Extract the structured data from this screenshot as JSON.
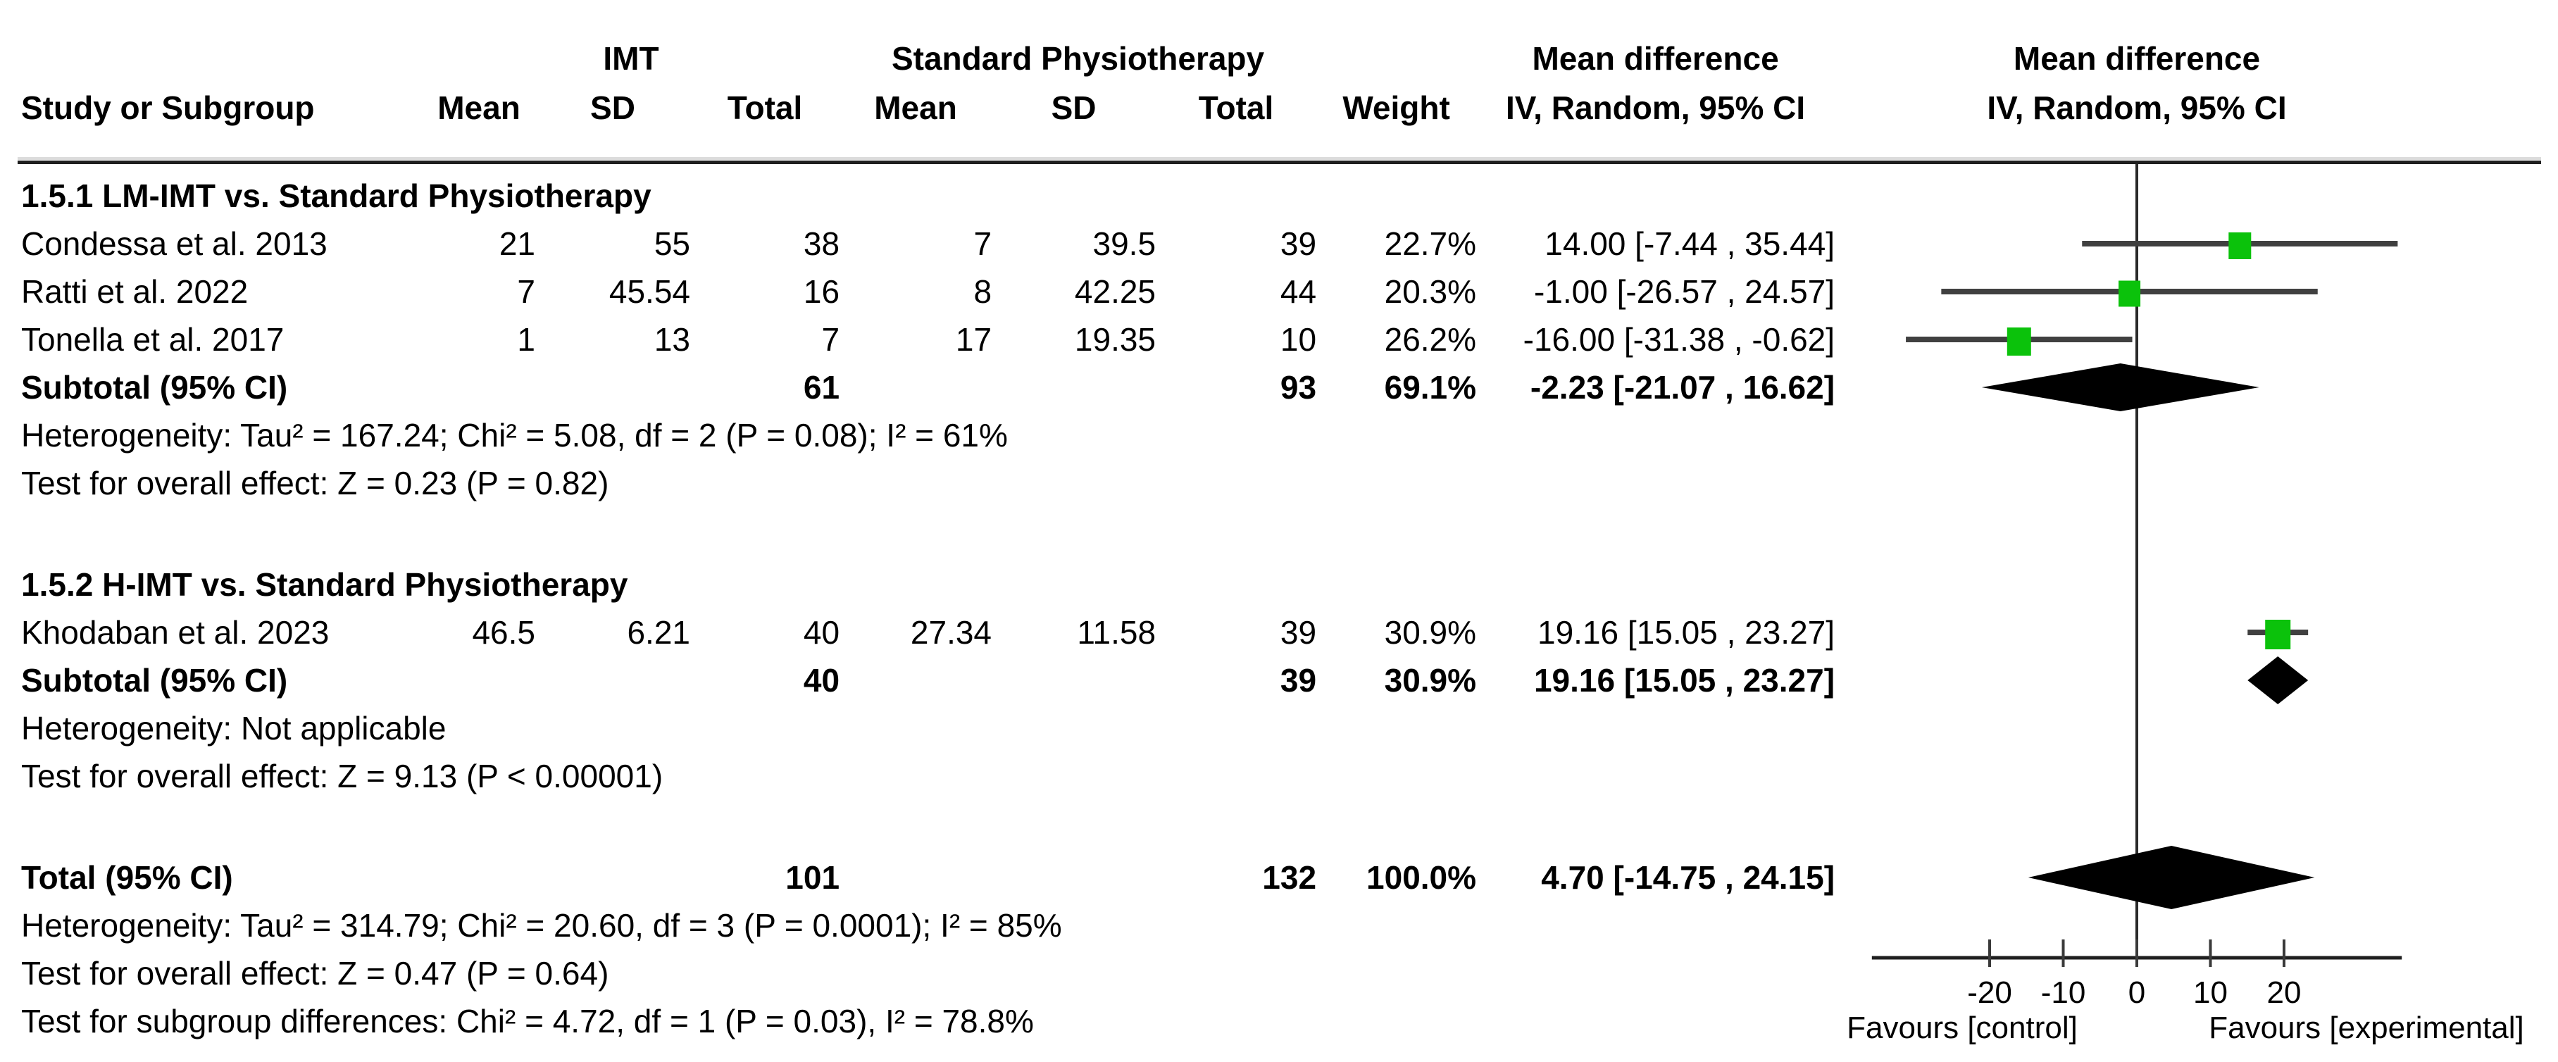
{
  "columns": {
    "study": "Study or Subgroup",
    "group1": "IMT",
    "group2": "Standard Physiotherapy",
    "mean": "Mean",
    "sd": "SD",
    "total": "Total",
    "weight": "Weight",
    "md": "Mean difference",
    "method": "IV, Random, 95% CI"
  },
  "groups": [
    {
      "title": "1.5.1 LM-IMT vs. Standard Physiotherapy",
      "studies": [
        {
          "name": "Condessa et al. 2013",
          "mean1": "21",
          "sd1": "55",
          "total1": "38",
          "mean2": "7",
          "sd2": "39.5",
          "total2": "39",
          "weight": "22.7%",
          "ci_text": "14.00 [-7.44 , 35.44]"
        },
        {
          "name": "Ratti et al. 2022",
          "mean1": "7",
          "sd1": "45.54",
          "total1": "16",
          "mean2": "8",
          "sd2": "42.25",
          "total2": "44",
          "weight": "20.3%",
          "ci_text": "-1.00 [-26.57 , 24.57]"
        },
        {
          "name": "Tonella et al. 2017",
          "mean1": "1",
          "sd1": "13",
          "total1": "7",
          "mean2": "17",
          "sd2": "19.35",
          "total2": "10",
          "weight": "26.2%",
          "ci_text": "-16.00 [-31.38 , -0.62]"
        }
      ],
      "subtotal": {
        "label": "Subtotal (95% CI)",
        "total1": "61",
        "total2": "93",
        "weight": "69.1%",
        "ci_text": "-2.23 [-21.07 , 16.62]"
      },
      "heterogeneity": "Heterogeneity: Tau² = 167.24; Chi² = 5.08, df = 2 (P = 0.08); I² = 61%",
      "overall_effect": "Test for overall effect: Z = 0.23 (P = 0.82)"
    },
    {
      "title": "1.5.2 H-IMT vs. Standard Physiotherapy",
      "studies": [
        {
          "name": "Khodaban et al. 2023",
          "mean1": "46.5",
          "sd1": "6.21",
          "total1": "40",
          "mean2": "27.34",
          "sd2": "11.58",
          "total2": "39",
          "weight": "30.9%",
          "ci_text": "19.16 [15.05 , 23.27]"
        }
      ],
      "subtotal": {
        "label": "Subtotal (95% CI)",
        "total1": "40",
        "total2": "39",
        "weight": "30.9%",
        "ci_text": "19.16 [15.05 , 23.27]"
      },
      "heterogeneity": "Heterogeneity: Not applicable",
      "overall_effect": "Test for overall effect: Z = 9.13 (P < 0.00001)"
    }
  ],
  "total": {
    "label": "Total (95% CI)",
    "total1": "101",
    "total2": "132",
    "weight": "100.0%",
    "ci_text": "4.70 [-14.75 , 24.15]",
    "heterogeneity": "Heterogeneity: Tau² = 314.79; Chi² = 20.60, df = 3 (P = 0.0001); I² = 85%",
    "overall_effect": "Test for overall effect: Z = 0.47 (P = 0.64)",
    "subgroup_differences": "Test for subgroup differences: Chi² = 4.72, df = 1 (P = 0.03), I² = 78.8%"
  },
  "axis": {
    "ticks": [
      "-20",
      "-10",
      "0",
      "10",
      "20"
    ],
    "favours_left": "Favours [control]",
    "favours_right": "Favours [experimental]"
  },
  "colors": {
    "square": "#0bc20b",
    "diamond": "#000000",
    "ci_line": "#404040",
    "axis": "#1f1f1f",
    "rule_highlight": "#dcdcdc",
    "text": "#000000",
    "background": "#ffffff"
  },
  "chart_data": {
    "type": "forest",
    "effect_label": "Mean difference",
    "method": "IV, Random, 95% CI",
    "xlim": [
      -36,
      36
    ],
    "x_ticks": [
      -20,
      -10,
      0,
      10,
      20
    ],
    "favours": {
      "left": "Favours [control]",
      "right": "Favours [experimental]"
    },
    "points": [
      {
        "row": "study",
        "subgroup": "1.5.1",
        "label": "Condessa et al. 2013",
        "md": 14.0,
        "ci_low": -7.44,
        "ci_high": 35.44,
        "weight_pct": 22.7,
        "marker": "square"
      },
      {
        "row": "study",
        "subgroup": "1.5.1",
        "label": "Ratti et al. 2022",
        "md": -1.0,
        "ci_low": -26.57,
        "ci_high": 24.57,
        "weight_pct": 20.3,
        "marker": "square"
      },
      {
        "row": "study",
        "subgroup": "1.5.1",
        "label": "Tonella et al. 2017",
        "md": -16.0,
        "ci_low": -31.38,
        "ci_high": -0.62,
        "weight_pct": 26.2,
        "marker": "square"
      },
      {
        "row": "subtotal",
        "subgroup": "1.5.1",
        "label": "Subtotal (95% CI)",
        "md": -2.23,
        "ci_low": -21.07,
        "ci_high": 16.62,
        "weight_pct": 69.1,
        "marker": "diamond"
      },
      {
        "row": "study",
        "subgroup": "1.5.2",
        "label": "Khodaban et al. 2023",
        "md": 19.16,
        "ci_low": 15.05,
        "ci_high": 23.27,
        "weight_pct": 30.9,
        "marker": "square"
      },
      {
        "row": "subtotal",
        "subgroup": "1.5.2",
        "label": "Subtotal (95% CI)",
        "md": 19.16,
        "ci_low": 15.05,
        "ci_high": 23.27,
        "weight_pct": 30.9,
        "marker": "diamond"
      },
      {
        "row": "total",
        "label": "Total (95% CI)",
        "md": 4.7,
        "ci_low": -14.75,
        "ci_high": 24.15,
        "weight_pct": 100.0,
        "marker": "diamond"
      }
    ]
  }
}
